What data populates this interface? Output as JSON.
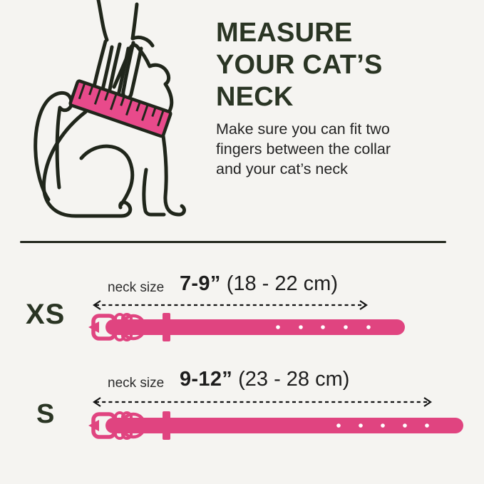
{
  "header": {
    "title_lines": [
      "MEASURE",
      "YOUR CAT’S",
      "NECK"
    ],
    "subtitle_lines": [
      "Make sure you can fit two",
      "fingers between the collar",
      "and your cat’s neck"
    ]
  },
  "sizes": [
    {
      "code": "XS",
      "label": "neck size",
      "inches": "7-9”",
      "cm": "(18 - 22 cm)"
    },
    {
      "code": "S",
      "label": "neck size",
      "inches": "9-12”",
      "cm": "(23 - 28 cm)"
    }
  ],
  "colors": {
    "background": "#f5f4f1",
    "ink": "#20261b",
    "heading": "#2a3524",
    "text": "#242424",
    "tape_pink": "#e84a8b",
    "collar_pink": "#e04480",
    "hole_white": "#ffffff",
    "arrow_black": "#141414"
  }
}
